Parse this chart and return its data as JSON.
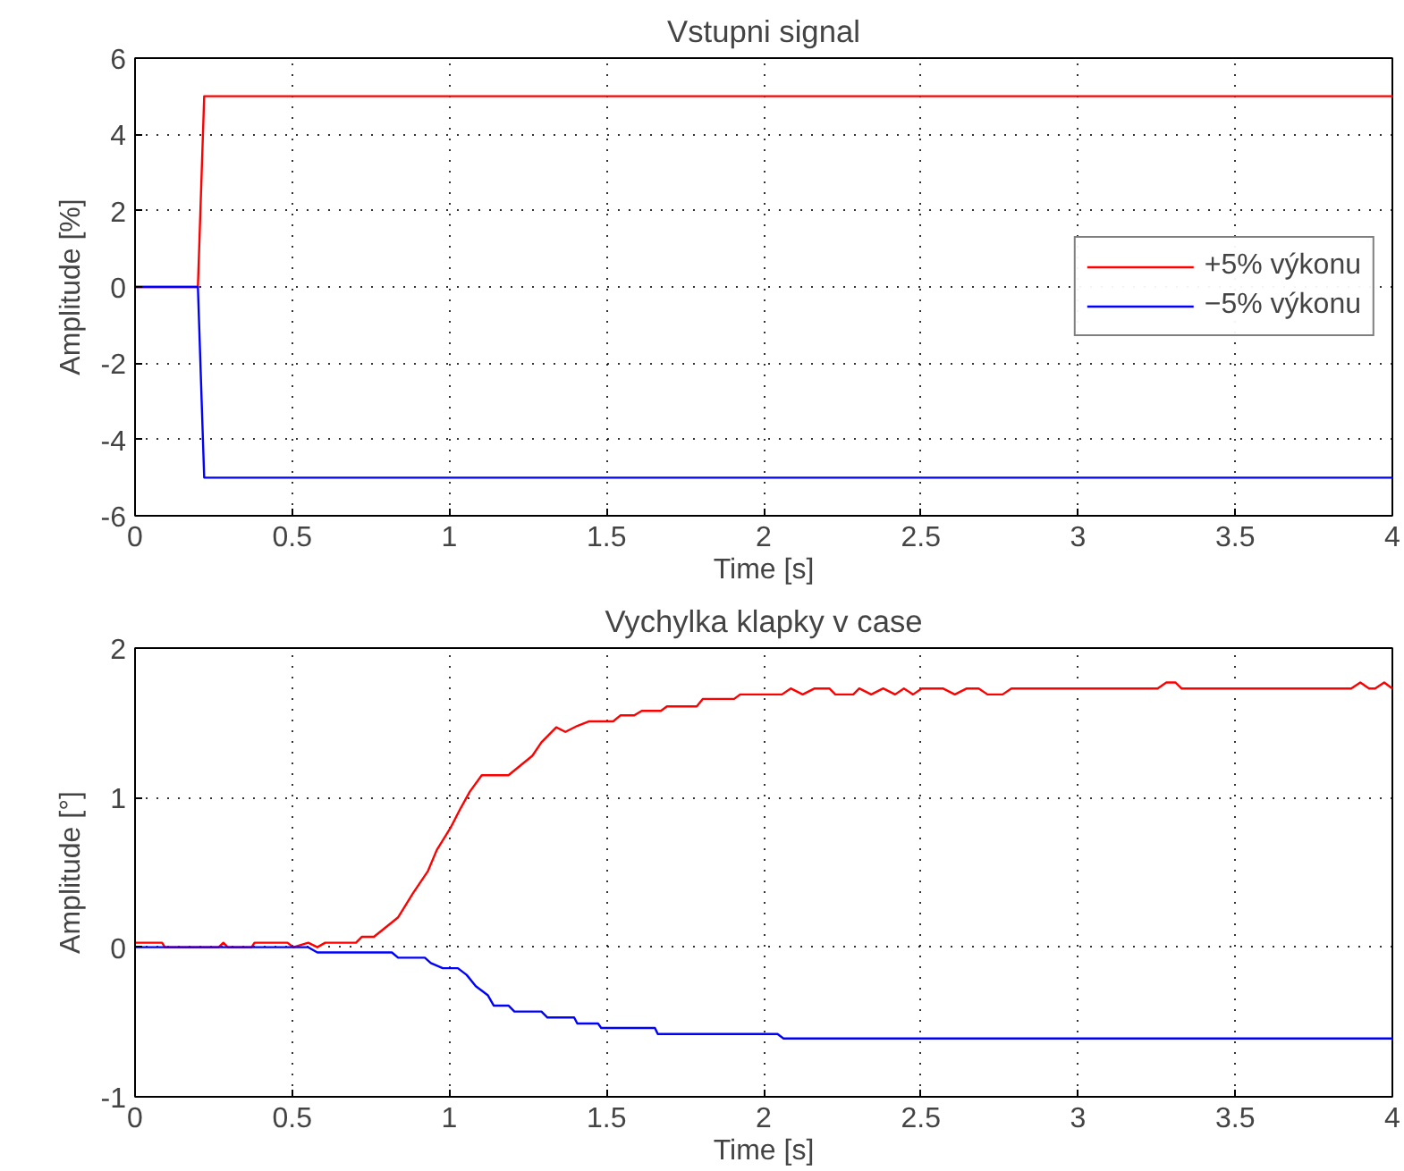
{
  "chart_data": [
    {
      "type": "line",
      "title": "Vstupni signal",
      "xlabel": "Time [s]",
      "ylabel": "Amplitude [%]",
      "xlim": [
        0,
        4
      ],
      "ylim": [
        -6,
        6
      ],
      "xticks": [
        0,
        0.5,
        1,
        1.5,
        2,
        2.5,
        3,
        3.5,
        4
      ],
      "yticks": [
        -6,
        -4,
        -2,
        0,
        2,
        4,
        6
      ],
      "grid": true,
      "legend": "right",
      "line_style": "solid",
      "marker": "none",
      "series": [
        {
          "name": "+5% výkonu",
          "color": "#ff0000",
          "x": [
            0,
            0.2,
            0.22,
            4
          ],
          "values": [
            0,
            0,
            5,
            5
          ]
        },
        {
          "name": "−5% výkonu",
          "color": "#0000ff",
          "x": [
            0,
            0.2,
            0.22,
            4
          ],
          "values": [
            0,
            0,
            -5,
            -5
          ]
        }
      ]
    },
    {
      "type": "line",
      "title": "Vychylka klapky v case",
      "xlabel": "Time [s]",
      "ylabel": "Amplitude [°]",
      "xlim": [
        0,
        4
      ],
      "ylim": [
        -1,
        2
      ],
      "xticks": [
        0,
        0.5,
        1,
        1.5,
        2,
        2.5,
        3,
        3.5,
        4
      ],
      "yticks": [
        -1,
        0,
        1,
        2
      ],
      "grid": true,
      "line_style": "solid",
      "marker": "none",
      "series": [
        {
          "color": "#ff0000",
          "x": [
            0,
            0.086,
            0.095,
            0.266,
            0.281,
            0.295,
            0.371,
            0.38,
            0.485,
            0.504,
            0.551,
            0.58,
            0.605,
            0.703,
            0.722,
            0.76,
            0.837,
            0.884,
            0.932,
            0.96,
            1.004,
            1.036,
            1.065,
            1.103,
            1.188,
            1.264,
            1.293,
            1.34,
            1.369,
            1.407,
            1.445,
            1.521,
            1.544,
            1.588,
            1.612,
            1.673,
            1.692,
            1.787,
            1.806,
            1.849,
            1.906,
            1.925,
            2.058,
            2.086,
            2.124,
            2.162,
            2.209,
            2.228,
            2.285,
            2.304,
            2.342,
            2.38,
            2.418,
            2.446,
            2.475,
            2.503,
            2.57,
            2.608,
            2.646,
            2.684,
            2.712,
            2.76,
            2.788,
            3.253,
            3.281,
            3.31,
            3.329,
            3.869,
            3.898,
            3.926,
            3.945,
            3.974,
            4.0
          ],
          "values": [
            0.03,
            0.03,
            0,
            0,
            0.03,
            0,
            0,
            0.03,
            0.03,
            0,
            0.03,
            0,
            0.03,
            0.03,
            0.07,
            0.07,
            0.2,
            0.36,
            0.51,
            0.65,
            0.8,
            0.93,
            1.04,
            1.15,
            1.15,
            1.28,
            1.37,
            1.47,
            1.44,
            1.48,
            1.51,
            1.51,
            1.55,
            1.55,
            1.58,
            1.58,
            1.61,
            1.61,
            1.66,
            1.66,
            1.66,
            1.69,
            1.69,
            1.73,
            1.69,
            1.73,
            1.73,
            1.69,
            1.69,
            1.73,
            1.69,
            1.73,
            1.69,
            1.73,
            1.69,
            1.73,
            1.73,
            1.69,
            1.73,
            1.73,
            1.69,
            1.69,
            1.73,
            1.73,
            1.77,
            1.77,
            1.73,
            1.73,
            1.77,
            1.73,
            1.73,
            1.77,
            1.73
          ]
        },
        {
          "color": "#0000ff",
          "x": [
            0,
            0.551,
            0.58,
            0.817,
            0.837,
            0.922,
            0.941,
            0.979,
            1.027,
            1.055,
            1.084,
            1.122,
            1.141,
            1.188,
            1.207,
            1.293,
            1.312,
            1.397,
            1.407,
            1.473,
            1.483,
            1.654,
            1.663,
            2.044,
            2.063,
            4.0
          ],
          "values": [
            0,
            0,
            -0.035,
            -0.035,
            -0.07,
            -0.07,
            -0.106,
            -0.14,
            -0.14,
            -0.185,
            -0.26,
            -0.32,
            -0.39,
            -0.39,
            -0.43,
            -0.43,
            -0.47,
            -0.47,
            -0.51,
            -0.51,
            -0.54,
            -0.54,
            -0.58,
            -0.58,
            -0.61,
            -0.61
          ]
        }
      ]
    }
  ]
}
